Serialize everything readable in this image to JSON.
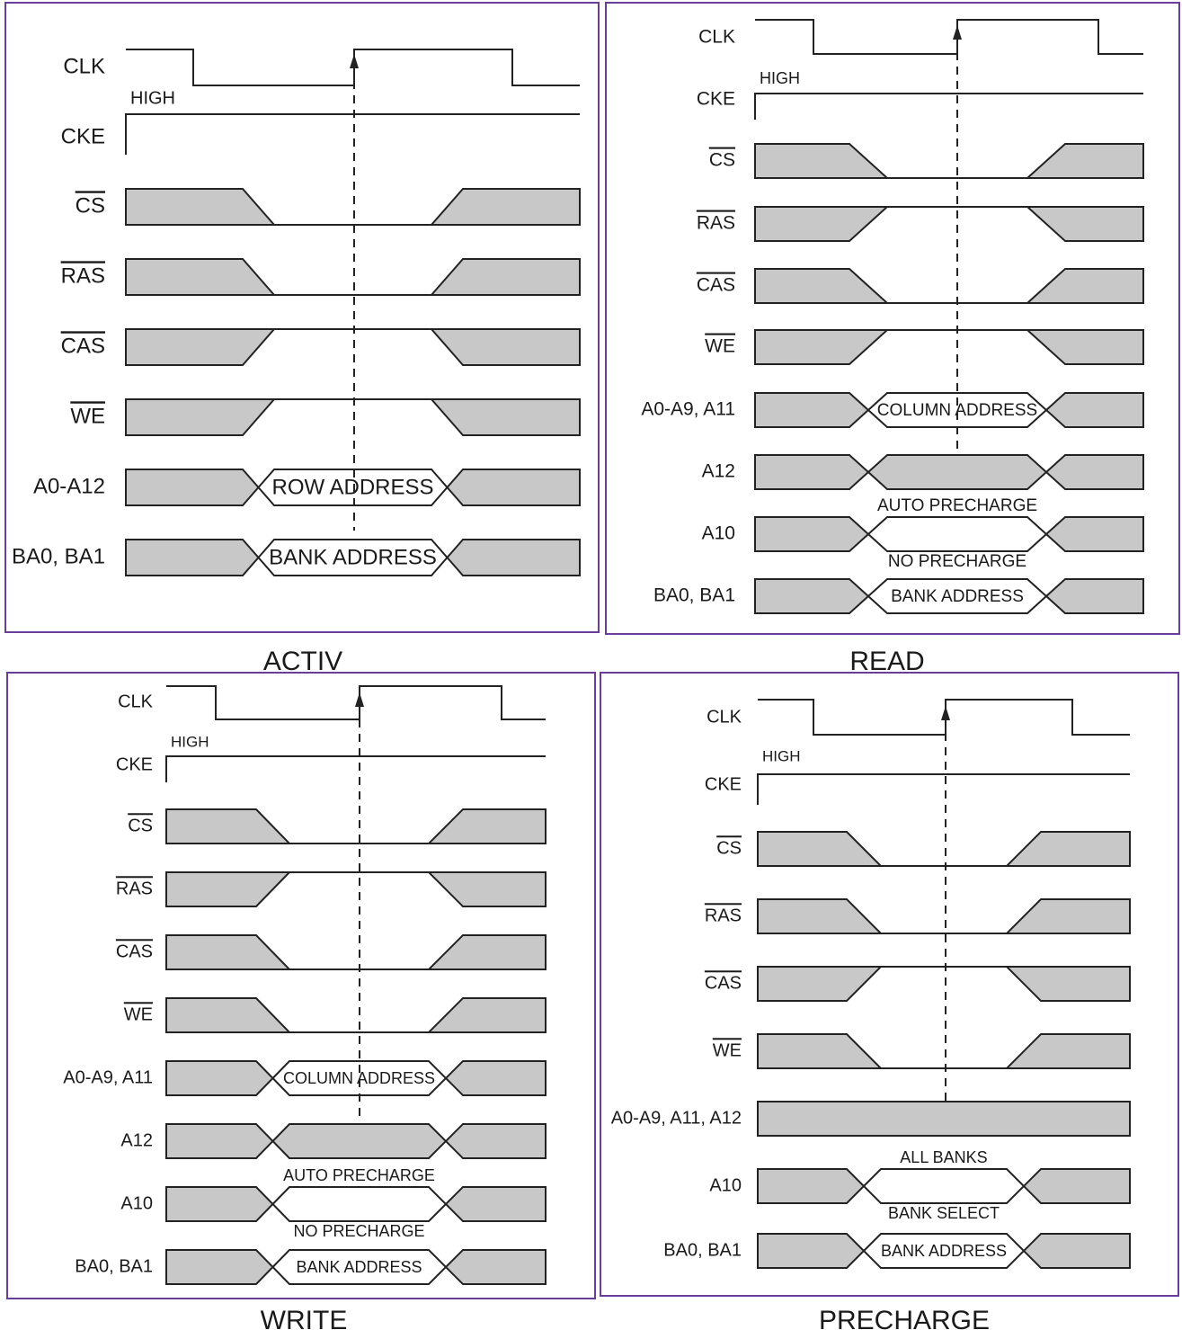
{
  "panels": [
    {
      "id": "activ",
      "caption": "ACTIV",
      "clk_label": "CLK",
      "cke_label": "CKE",
      "cke_high_label": "HIGH",
      "rows": [
        {
          "label": "CS",
          "overbar": true,
          "kind": "falling"
        },
        {
          "label": "RAS",
          "overbar": true,
          "kind": "falling"
        },
        {
          "label": "CAS",
          "overbar": true,
          "kind": "rising"
        },
        {
          "label": "WE",
          "overbar": true,
          "kind": "rising"
        },
        {
          "label": "A0-A12",
          "overbar": false,
          "kind": "bus",
          "text": "ROW ADDRESS"
        },
        {
          "label": "BA0, BA1",
          "overbar": false,
          "kind": "bus",
          "text": "BANK ADDRESS"
        }
      ]
    },
    {
      "id": "read",
      "caption": "READ",
      "clk_label": "CLK",
      "cke_label": "CKE",
      "cke_high_label": "HIGH",
      "rows": [
        {
          "label": "CS",
          "overbar": true,
          "kind": "falling"
        },
        {
          "label": "RAS",
          "overbar": true,
          "kind": "rising"
        },
        {
          "label": "CAS",
          "overbar": true,
          "kind": "falling"
        },
        {
          "label": "WE",
          "overbar": true,
          "kind": "rising"
        },
        {
          "label": "A0-A9, A11",
          "overbar": false,
          "kind": "bus",
          "text": "COLUMN ADDRESS"
        },
        {
          "label": "A12",
          "overbar": false,
          "kind": "bus-hatched"
        },
        {
          "label": "A10",
          "overbar": false,
          "kind": "bus",
          "top_text": "AUTO PRECHARGE",
          "bottom_text": "NO PRECHARGE"
        },
        {
          "label": "BA0, BA1",
          "overbar": false,
          "kind": "bus",
          "text": "BANK ADDRESS"
        }
      ]
    },
    {
      "id": "write",
      "caption": "WRITE",
      "clk_label": "CLK",
      "cke_label": "CKE",
      "cke_high_label": "HIGH",
      "rows": [
        {
          "label": "CS",
          "overbar": true,
          "kind": "falling"
        },
        {
          "label": "RAS",
          "overbar": true,
          "kind": "rising"
        },
        {
          "label": "CAS",
          "overbar": true,
          "kind": "falling"
        },
        {
          "label": "WE",
          "overbar": true,
          "kind": "falling"
        },
        {
          "label": "A0-A9, A11",
          "overbar": false,
          "kind": "bus",
          "text": "COLUMN ADDRESS"
        },
        {
          "label": "A12",
          "overbar": false,
          "kind": "bus-hatched"
        },
        {
          "label": "A10",
          "overbar": false,
          "kind": "bus",
          "top_text": "AUTO PRECHARGE",
          "bottom_text": "NO PRECHARGE"
        },
        {
          "label": "BA0, BA1",
          "overbar": false,
          "kind": "bus",
          "text": "BANK ADDRESS"
        }
      ]
    },
    {
      "id": "precharge",
      "caption": "PRECHARGE",
      "clk_label": "CLK",
      "cke_label": "CKE",
      "cke_high_label": "HIGH",
      "rows": [
        {
          "label": "CS",
          "overbar": true,
          "kind": "falling"
        },
        {
          "label": "RAS",
          "overbar": true,
          "kind": "falling"
        },
        {
          "label": "CAS",
          "overbar": true,
          "kind": "rising"
        },
        {
          "label": "WE",
          "overbar": true,
          "kind": "falling"
        },
        {
          "label": "A0-A9, A11, A12",
          "overbar": false,
          "kind": "full-hatched"
        },
        {
          "label": "A10",
          "overbar": false,
          "kind": "bus",
          "top_text": "ALL BANKS",
          "bottom_text": "BANK SELECT"
        },
        {
          "label": "BA0, BA1",
          "overbar": false,
          "kind": "bus",
          "text": "BANK ADDRESS"
        }
      ]
    }
  ]
}
